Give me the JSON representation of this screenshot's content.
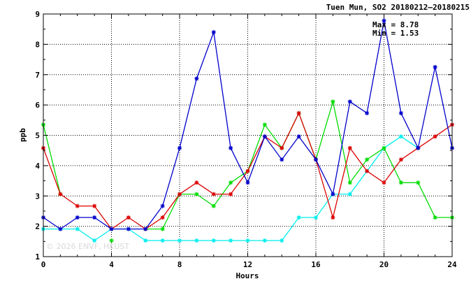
{
  "chart_data": {
    "type": "line",
    "title": "Tuen Mun, SO2 20180212–20180215",
    "xlabel": "Hours",
    "ylabel": "ppb",
    "xlim": [
      0,
      24
    ],
    "ylim": [
      1,
      9
    ],
    "x_ticks": [
      0,
      4,
      8,
      12,
      16,
      20,
      24
    ],
    "y_ticks": [
      1,
      2,
      3,
      4,
      5,
      6,
      7,
      8,
      9
    ],
    "grid": true,
    "stats": {
      "max": "Max = 8.78",
      "min": "Min = 1.53"
    },
    "watermark": "© 2026  ENVF, HKUST",
    "x": [
      0,
      1,
      2,
      3,
      4,
      5,
      6,
      7,
      8,
      9,
      10,
      11,
      12,
      13,
      14,
      15,
      16,
      17,
      18,
      19,
      20,
      21,
      22,
      23,
      24
    ],
    "series": [
      {
        "color": "#0000cc",
        "values": [
          2.29,
          1.91,
          2.29,
          2.29,
          1.91,
          1.91,
          1.91,
          2.67,
          4.58,
          6.87,
          8.4,
          4.58,
          3.44,
          4.96,
          4.2,
          4.96,
          4.2,
          3.06,
          6.11,
          5.73,
          8.78,
          5.73,
          4.58,
          7.25,
          4.58
        ]
      },
      {
        "color": "#dd0000",
        "values": [
          4.58,
          3.06,
          2.67,
          2.67,
          1.91,
          2.29,
          1.91,
          2.29,
          3.06,
          3.44,
          3.06,
          3.06,
          3.82,
          4.96,
          4.58,
          5.73,
          4.2,
          2.29,
          4.58,
          3.82,
          3.44,
          4.2,
          4.58,
          4.96,
          5.35
        ]
      },
      {
        "color": "#00dd00",
        "values": [
          5.35,
          3.06,
          null,
          null,
          1.53,
          null,
          1.91,
          1.91,
          3.06,
          3.06,
          2.67,
          3.44,
          3.82,
          5.35,
          4.58,
          5.73,
          4.2,
          6.11,
          3.44,
          4.2,
          4.58,
          3.44,
          3.44,
          2.29,
          2.29
        ]
      },
      {
        "color": "#00eeee",
        "values": [
          1.91,
          1.91,
          1.91,
          1.53,
          1.91,
          1.91,
          1.53,
          1.53,
          1.53,
          1.53,
          1.53,
          1.53,
          1.53,
          1.53,
          1.53,
          2.29,
          2.29,
          3.06,
          3.06,
          3.82,
          4.58,
          4.96,
          4.58,
          null,
          null
        ]
      }
    ]
  }
}
